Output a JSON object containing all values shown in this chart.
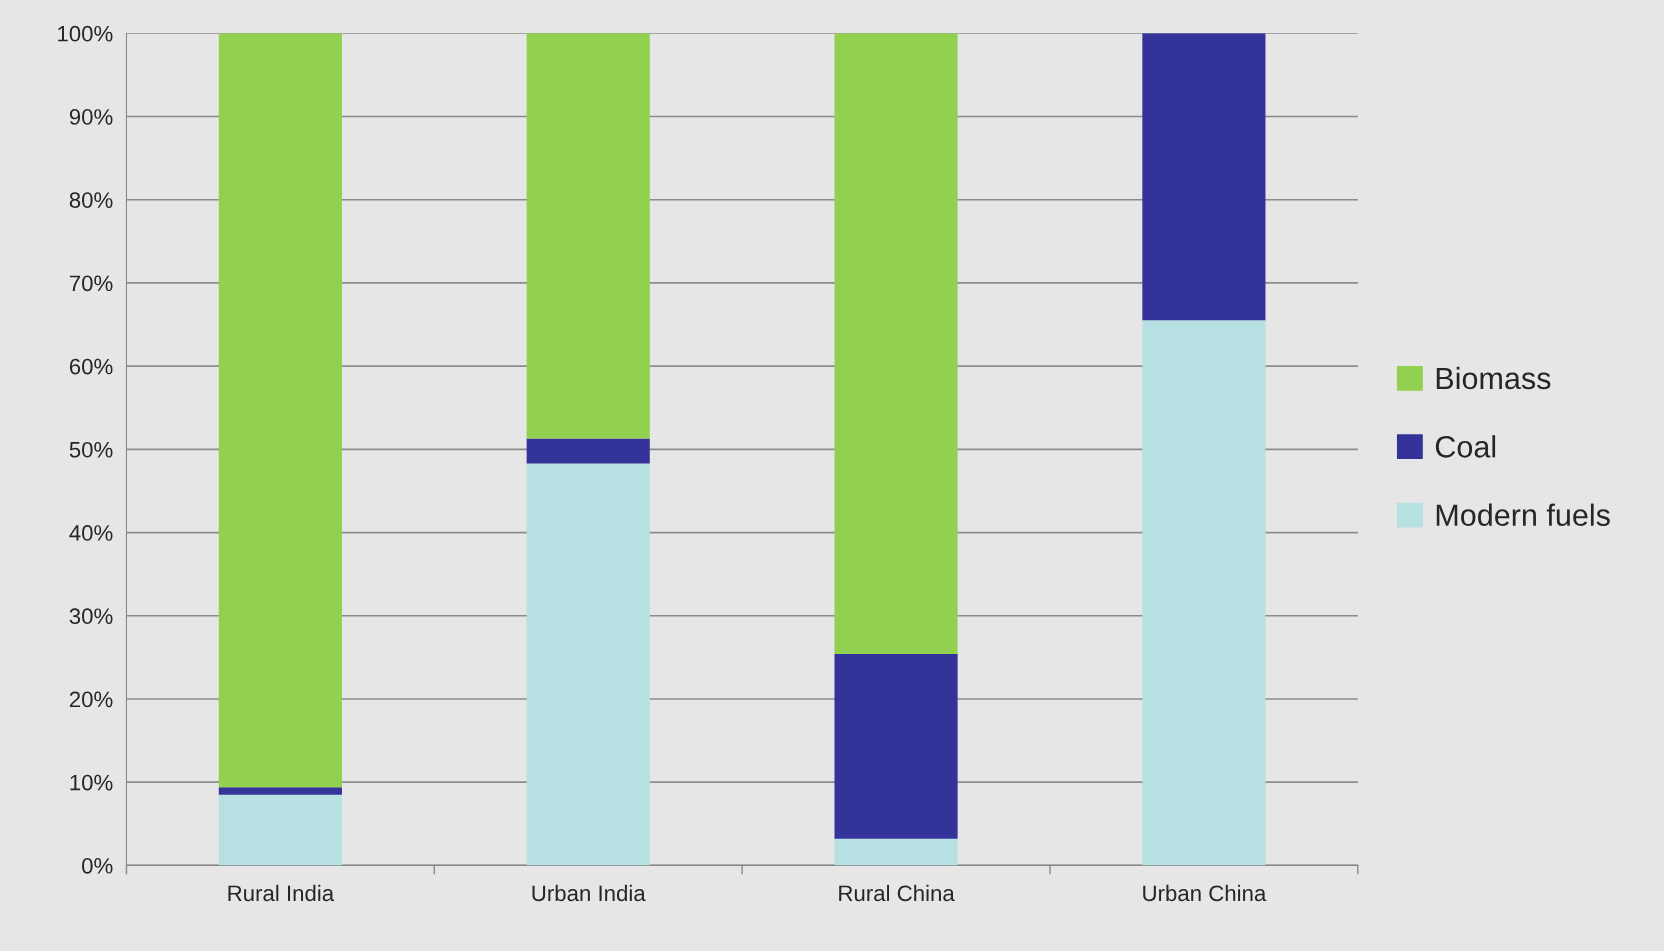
{
  "chart_data": {
    "type": "bar",
    "stacked": true,
    "categories": [
      "Rural India",
      "Urban India",
      "Rural China",
      "Urban China"
    ],
    "series": [
      {
        "name": "Modern fuels",
        "color": "#b7e0e3",
        "values": [
          8.5,
          48.3,
          3.2,
          65.5
        ]
      },
      {
        "name": "Coal",
        "color": "#333399",
        "values": [
          0.9,
          3.0,
          22.2,
          34.5
        ]
      },
      {
        "name": "Biomass",
        "color": "#92d050",
        "values": [
          90.6,
          48.7,
          74.6,
          null
        ]
      }
    ],
    "ylim": [
      0,
      100
    ],
    "yticks": [
      {
        "value": 0,
        "label": "0%"
      },
      {
        "value": 10,
        "label": "10%"
      },
      {
        "value": 20,
        "label": "20%"
      },
      {
        "value": 30,
        "label": "30%"
      },
      {
        "value": 40,
        "label": "40%"
      },
      {
        "value": 50,
        "label": "50%"
      },
      {
        "value": 60,
        "label": "60%"
      },
      {
        "value": 70,
        "label": "70%"
      },
      {
        "value": 80,
        "label": "80%"
      },
      {
        "value": 90,
        "label": "90%"
      },
      {
        "value": 100,
        "label": "100%"
      }
    ],
    "grid": "y",
    "legend": "right"
  }
}
